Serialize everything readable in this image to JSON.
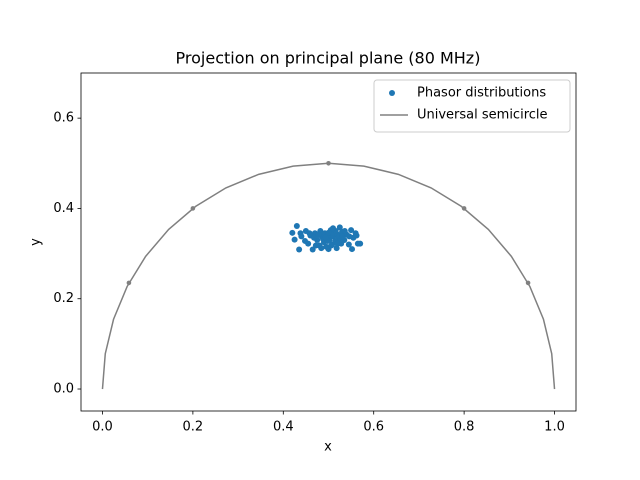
{
  "chart_data": {
    "type": "scatter",
    "title": "Projection on principal plane (80 MHz)",
    "x_label": "x",
    "y_label": "y",
    "xlim": [
      -0.0475,
      1.0475
    ],
    "ylim": [
      -0.0487,
      0.7
    ],
    "xticks": [
      {
        "value": 0,
        "label": "0.0"
      },
      {
        "value": 0.2,
        "label": "0.2"
      },
      {
        "value": 0.4,
        "label": "0.4"
      },
      {
        "value": 0.6,
        "label": "0.6"
      },
      {
        "value": 0.8,
        "label": "0.8"
      },
      {
        "value": 1,
        "label": "1.0"
      }
    ],
    "yticks": [
      {
        "value": 0,
        "label": "0.0"
      },
      {
        "value": 0.2,
        "label": "0.2"
      },
      {
        "value": 0.4,
        "label": "0.4"
      },
      {
        "value": 0.6,
        "label": "0.6"
      }
    ],
    "legend": "upper right",
    "series": [
      {
        "name": "Phasor distributions",
        "color": "#1f77b4",
        "style": "points",
        "x": [
          0.43,
          0.42,
          0.425,
          0.435,
          0.44,
          0.45,
          0.455,
          0.46,
          0.465,
          0.47,
          0.475,
          0.48,
          0.482,
          0.485,
          0.49,
          0.492,
          0.495,
          0.5,
          0.502,
          0.505,
          0.508,
          0.51,
          0.512,
          0.515,
          0.518,
          0.52,
          0.522,
          0.525,
          0.528,
          0.53,
          0.535,
          0.54,
          0.545,
          0.55,
          0.555,
          0.56,
          0.565,
          0.57,
          0.448,
          0.468,
          0.478,
          0.488,
          0.498,
          0.506,
          0.516,
          0.526,
          0.536,
          0.546,
          0.458,
          0.472,
          0.5,
          0.51,
          0.494,
          0.484,
          0.552,
          0.562,
          0.438,
          0.5,
          0.52,
          0.53
        ],
        "y": [
          0.361,
          0.346,
          0.331,
          0.309,
          0.338,
          0.35,
          0.322,
          0.34,
          0.309,
          0.345,
          0.33,
          0.318,
          0.35,
          0.338,
          0.325,
          0.345,
          0.315,
          0.34,
          0.33,
          0.352,
          0.32,
          0.338,
          0.345,
          0.328,
          0.312,
          0.342,
          0.335,
          0.358,
          0.322,
          0.348,
          0.33,
          0.342,
          0.32,
          0.352,
          0.335,
          0.345,
          0.322,
          0.322,
          0.328,
          0.335,
          0.342,
          0.332,
          0.328,
          0.318,
          0.35,
          0.33,
          0.35,
          0.338,
          0.345,
          0.318,
          0.31,
          0.356,
          0.336,
          0.312,
          0.31,
          0.34,
          0.345,
          0.346,
          0.322,
          0.338
        ]
      },
      {
        "name": "Universal semicircle",
        "color": "#808080",
        "style": "line",
        "x": [
          0,
          0.0062,
          0.0245,
          0.0545,
          0.0955,
          0.1464,
          0.2061,
          0.273,
          0.3455,
          0.4218,
          0.5,
          0.5782,
          0.6545,
          0.727,
          0.7939,
          0.8536,
          0.9045,
          0.9455,
          0.9755,
          0.9938,
          1
        ],
        "y": [
          0,
          0.0782,
          0.1545,
          0.227,
          0.2939,
          0.3536,
          0.4045,
          0.4455,
          0.4755,
          0.4938,
          0.5,
          0.4938,
          0.4755,
          0.4455,
          0.4045,
          0.3536,
          0.2939,
          0.227,
          0.1545,
          0.0782,
          0
        ],
        "marker_points": {
          "x": [
            0.0585,
            0.2,
            0.5,
            0.8,
            0.9415
          ],
          "y": [
            0.235,
            0.4,
            0.5,
            0.4,
            0.235
          ]
        }
      }
    ]
  }
}
